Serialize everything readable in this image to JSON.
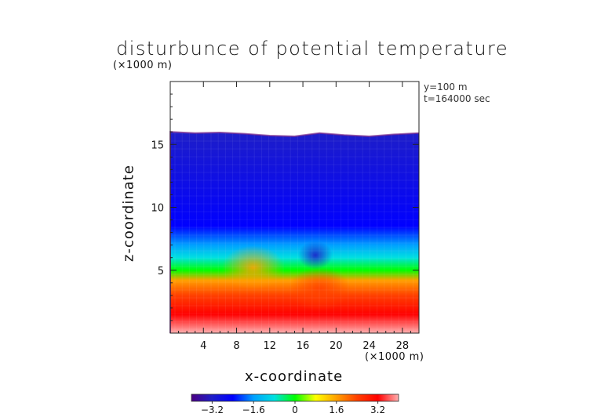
{
  "chart_data": {
    "type": "heatmap",
    "title": "disturbunce of potential temperature",
    "xlabel": "x-coordinate",
    "ylabel": "z-coordinate",
    "x_unit": "(×1000 m)",
    "y_unit": "(×1000 m)",
    "annotations": [
      "y=100 m",
      "t=164000 sec"
    ],
    "xlim": [
      0,
      30
    ],
    "ylim": [
      0,
      20
    ],
    "x_ticks": [
      4,
      8,
      12,
      16,
      20,
      24,
      28
    ],
    "y_ticks": [
      5,
      10,
      15
    ],
    "x_tick_labels": [
      "4",
      "8",
      "12",
      "16",
      "20",
      "24",
      "28"
    ],
    "y_tick_labels": [
      "5",
      "10",
      "15"
    ],
    "colorbar": {
      "range": [
        -4,
        4
      ],
      "ticks": [
        -3.2,
        -1.6,
        0,
        1.6,
        3.2
      ],
      "tick_labels": [
        "−3.2",
        "−1.6",
        "0",
        "1.6",
        "3.2"
      ],
      "colors": [
        "#4b0082",
        "#1e1ec8",
        "#0000ff",
        "#00a0ff",
        "#00e0e0",
        "#00ff00",
        "#ffff00",
        "#ffa000",
        "#ff4000",
        "#ff0000",
        "#ffb0b0"
      ]
    },
    "field_top_height": [
      16.0,
      15.9,
      15.95,
      15.85,
      15.7,
      15.65,
      15.9,
      15.75,
      15.65,
      15.8,
      15.9
    ],
    "field_top_x": [
      0,
      3,
      6,
      9,
      12,
      15,
      18,
      21,
      24,
      27,
      30
    ],
    "profile": [
      {
        "z": 0.0,
        "value": 4.2
      },
      {
        "z": 1.5,
        "value": 3.4
      },
      {
        "z": 3.0,
        "value": 2.4
      },
      {
        "z": 4.2,
        "value": 1.2
      },
      {
        "z": 5.0,
        "value": 0.1
      },
      {
        "z": 6.0,
        "value": -1.0
      },
      {
        "z": 7.0,
        "value": -2.0
      },
      {
        "z": 8.5,
        "value": -2.6
      },
      {
        "z": 16.0,
        "value": -2.9
      }
    ],
    "features": [
      {
        "x": 10,
        "z": 5.2,
        "description": "warm bulge",
        "value": 1.5
      },
      {
        "x": 18,
        "z": 3.5,
        "description": "warm dome",
        "value": 2.5
      },
      {
        "x": 17.5,
        "z": 6.2,
        "description": "cold pocket",
        "value": -3.0
      }
    ]
  }
}
